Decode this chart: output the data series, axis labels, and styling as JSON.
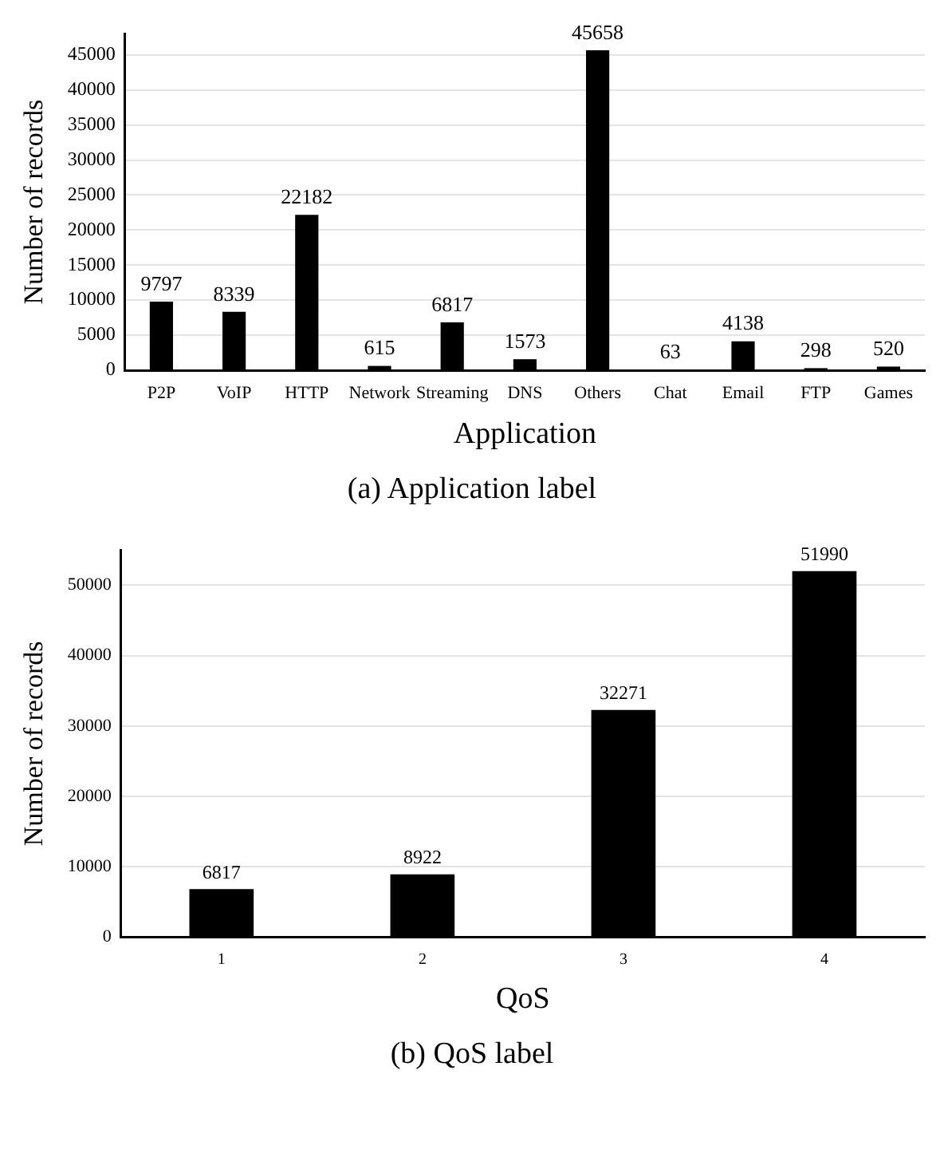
{
  "chart_data": [
    {
      "type": "bar",
      "xlabel": "Application",
      "ylabel": "Number of records",
      "categories": [
        "P2P",
        "VoIP",
        "HTTP",
        "Network",
        "Streaming",
        "DNS",
        "Others",
        "Chat",
        "Email",
        "FTP",
        "Games"
      ],
      "values": [
        9797,
        8339,
        22182,
        615,
        6817,
        1573,
        45658,
        63,
        4138,
        298,
        520
      ],
      "color": "#000000",
      "ylim": [
        0,
        48000
      ],
      "yticks": [
        0,
        5000,
        10000,
        15000,
        20000,
        25000,
        30000,
        35000,
        40000,
        45000
      ],
      "grid": "y",
      "data_labels": true,
      "annotations": [
        "(a)  Application label"
      ]
    },
    {
      "type": "bar",
      "xlabel": "QoS",
      "ylabel": "Number of records",
      "categories": [
        "1",
        "2",
        "3",
        "4"
      ],
      "values": [
        6817,
        8922,
        32271,
        51990
      ],
      "color": "#000000",
      "ylim": [
        0,
        55000
      ],
      "yticks": [
        0,
        10000,
        20000,
        30000,
        40000,
        50000
      ],
      "grid": "y",
      "data_labels": true,
      "annotations": [
        "(b)  QoS label"
      ]
    }
  ]
}
